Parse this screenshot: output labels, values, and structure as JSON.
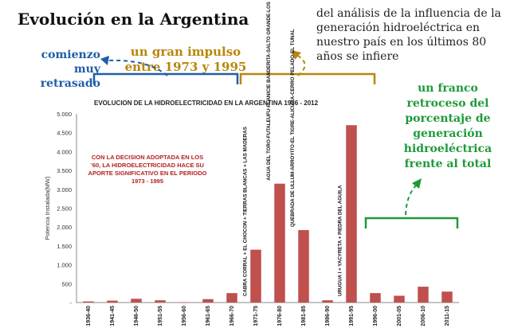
{
  "header": {
    "title": "Evolución en la Argentina",
    "intro": "del análisis de la influencia de la generación hidroeléctrica en nuestro país en los últimos 80 años se infiere"
  },
  "callouts": {
    "early": "comienzo muy retrasado",
    "impulse": "un gran impulso entre 1973 y 1995",
    "decline": "un franco retroceso del porcentaje de generación hidroeléctrica frente al total",
    "colors": {
      "early": "#1f5ea8",
      "impulse": "#b8860b",
      "decline": "#1f9a3a",
      "note": "#b22222"
    }
  },
  "chart_data": {
    "type": "bar",
    "title": "EVOLUCION DE LA HIDROELECTRICIDAD EN LA ARGENTINA 1936 - 2012",
    "ylabel": "Potencia Instalada(MW)",
    "xlabel": "",
    "ylim": [
      0,
      5000
    ],
    "yticks": [
      "-",
      "500",
      "1.000",
      "1.500",
      "2.000",
      "2.500",
      "3.000",
      "3.500",
      "4.000",
      "4.500",
      "5.000"
    ],
    "categories": [
      "1936-40",
      "1941-45",
      "1946-50",
      "1951-55",
      "1956-60",
      "1961-65",
      "1966-70",
      "1971-75",
      "1976-80",
      "1981-85",
      "1986-90",
      "1991-95",
      "1996-00",
      "2001-05",
      "2006-10",
      "2011-15"
    ],
    "values": [
      30,
      50,
      100,
      60,
      5,
      90,
      250,
      1400,
      3150,
      1920,
      60,
      4700,
      250,
      180,
      420,
      290
    ],
    "bar_color": "#c0504d",
    "grid": false,
    "note": "CON LA DECISION ADOPTADA EN LOS '60, LA HIDROELECTRICIDAD HACE SU APORTE SIGNIFICATIVO EN EL PERIODO 1973 - 1995",
    "bar_labels": [
      {
        "category": "1971-75",
        "text": "CABRA CORRAL + EL CHOCON + TIERRAS BLANCAS + LAS MADERAS"
      },
      {
        "category": "1976-80",
        "text": "AGUA DEL TORO-FUTALEUFU-PLANICIE BANDERITA-SALTO GRANDE-LOS REYUNOS"
      },
      {
        "category": "1981-85",
        "text": "QUEBRADA DE ULLUM-ARROYITO-EL TIGRE-ALICURA-CERRO PELADO-EL TUNAL"
      },
      {
        "category": "1991-95",
        "text": "URUGUA I + YACYRETA + PIEDRA DEL AGUILA"
      }
    ]
  }
}
